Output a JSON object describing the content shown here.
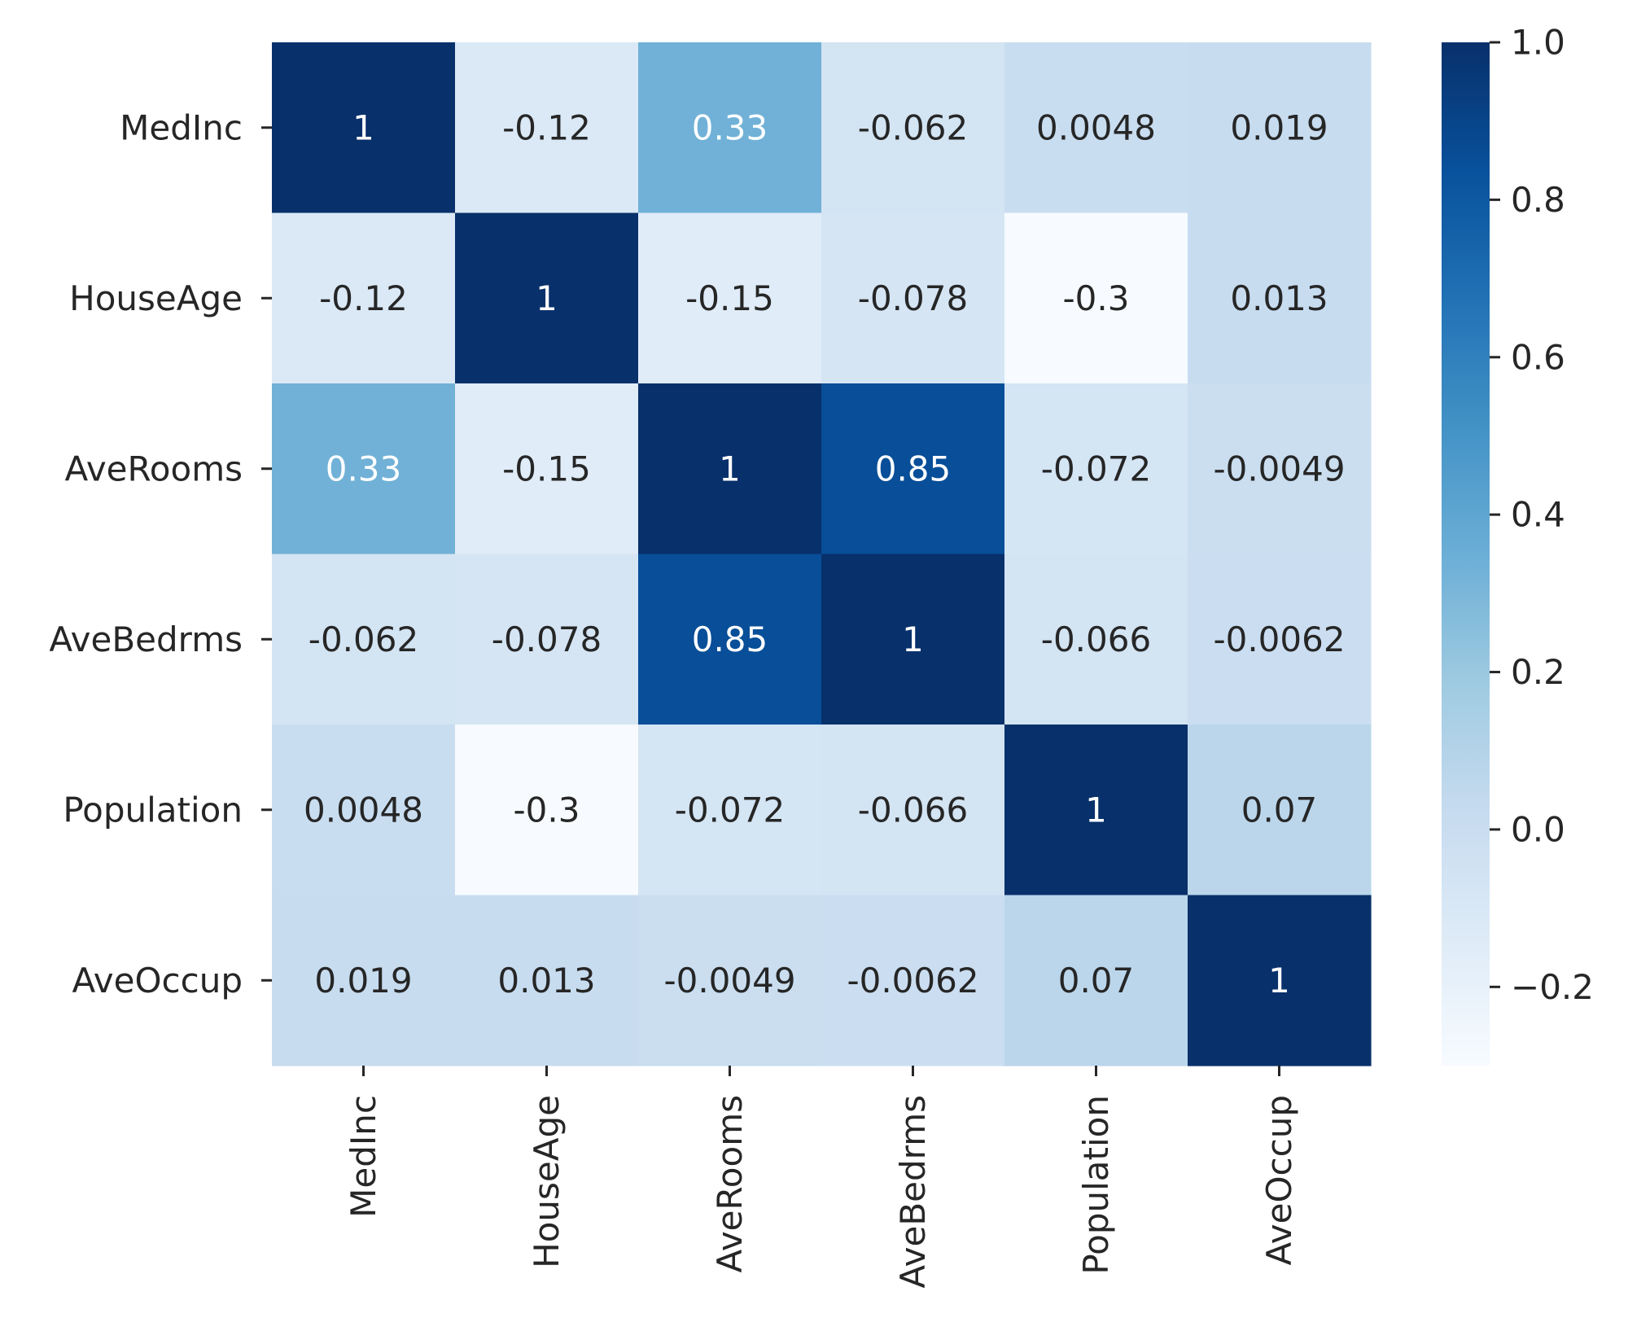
{
  "chart_data": {
    "type": "heatmap",
    "title": "",
    "xlabel": "",
    "ylabel": "",
    "categories": [
      "MedInc",
      "HouseAge",
      "AveRooms",
      "AveBedrms",
      "Population",
      "AveOccup"
    ],
    "row_labels": [
      "MedInc",
      "HouseAge",
      "AveRooms",
      "AveBedrms",
      "Population",
      "AveOccup"
    ],
    "column_labels": [
      "MedInc",
      "HouseAge",
      "AveRooms",
      "AveBedrms",
      "Population",
      "AveOccup"
    ],
    "values": [
      [
        1,
        -0.12,
        0.33,
        -0.062,
        0.0048,
        0.019
      ],
      [
        -0.12,
        1,
        -0.15,
        -0.078,
        -0.3,
        0.013
      ],
      [
        0.33,
        -0.15,
        1,
        0.85,
        -0.072,
        -0.0049
      ],
      [
        -0.062,
        -0.078,
        0.85,
        1,
        -0.066,
        -0.0062
      ],
      [
        0.0048,
        -0.3,
        -0.072,
        -0.066,
        1,
        0.07
      ],
      [
        0.019,
        0.013,
        -0.0049,
        -0.0062,
        0.07,
        1
      ]
    ],
    "annotations": [
      [
        "1",
        "-0.12",
        "0.33",
        "-0.062",
        "0.0048",
        "0.019"
      ],
      [
        "-0.12",
        "1",
        "-0.15",
        "-0.078",
        "-0.3",
        "0.013"
      ],
      [
        "0.33",
        "-0.15",
        "1",
        "0.85",
        "-0.072",
        "-0.0049"
      ],
      [
        "-0.062",
        "-0.078",
        "0.85",
        "1",
        "-0.066",
        "-0.0062"
      ],
      [
        "0.0048",
        "-0.3",
        "-0.072",
        "-0.066",
        "1",
        "0.07"
      ],
      [
        "0.019",
        "0.013",
        "-0.0049",
        "-0.0062",
        "0.07",
        "1"
      ]
    ],
    "colormap": "Blues",
    "colorbar": {
      "vmin": -0.3,
      "vmax": 1.0,
      "ticks": [
        -0.2,
        0.0,
        0.2,
        0.4,
        0.6,
        0.8,
        1.0
      ],
      "tick_labels": [
        "−0.2",
        "0.0",
        "0.2",
        "0.4",
        "0.6",
        "0.8",
        "1.0"
      ]
    },
    "grid": false,
    "legend": "colorbar right"
  }
}
